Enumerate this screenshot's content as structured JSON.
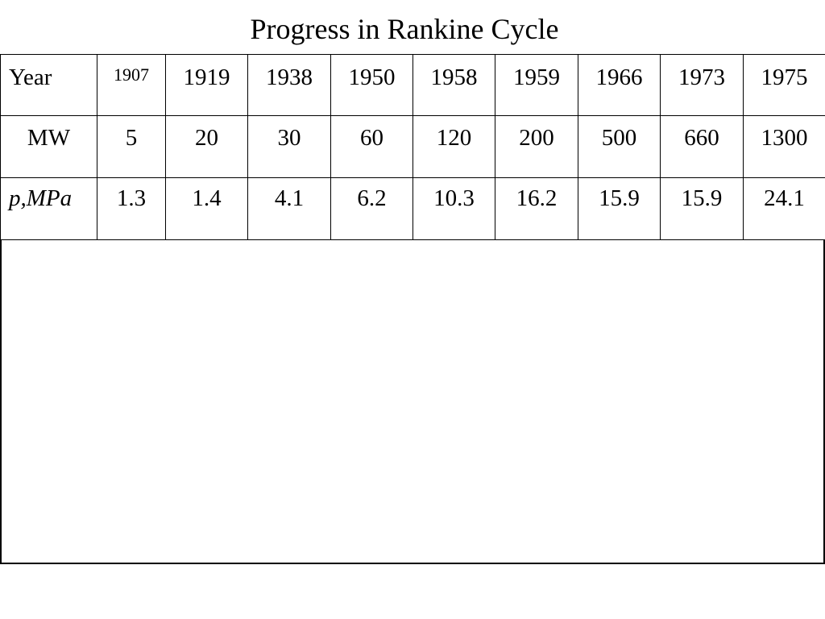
{
  "slide": {
    "title": "Progress in Rankine Cycle"
  },
  "table": {
    "rows": [
      {
        "label": "Year",
        "cells": [
          "1907",
          "1919",
          "1938",
          "1950",
          "1958",
          "1959",
          "1966",
          "1973",
          "1975"
        ]
      },
      {
        "label": "MW",
        "cells": [
          "5",
          "20",
          "30",
          "60",
          "120",
          "200",
          "500",
          "660",
          "1300"
        ]
      },
      {
        "label": "p,MPa",
        "cells": [
          "1.3",
          "1.4",
          "4.1",
          "6.2",
          "10.3",
          "16.2",
          "15.9",
          "15.9",
          "24.1"
        ]
      }
    ]
  }
}
